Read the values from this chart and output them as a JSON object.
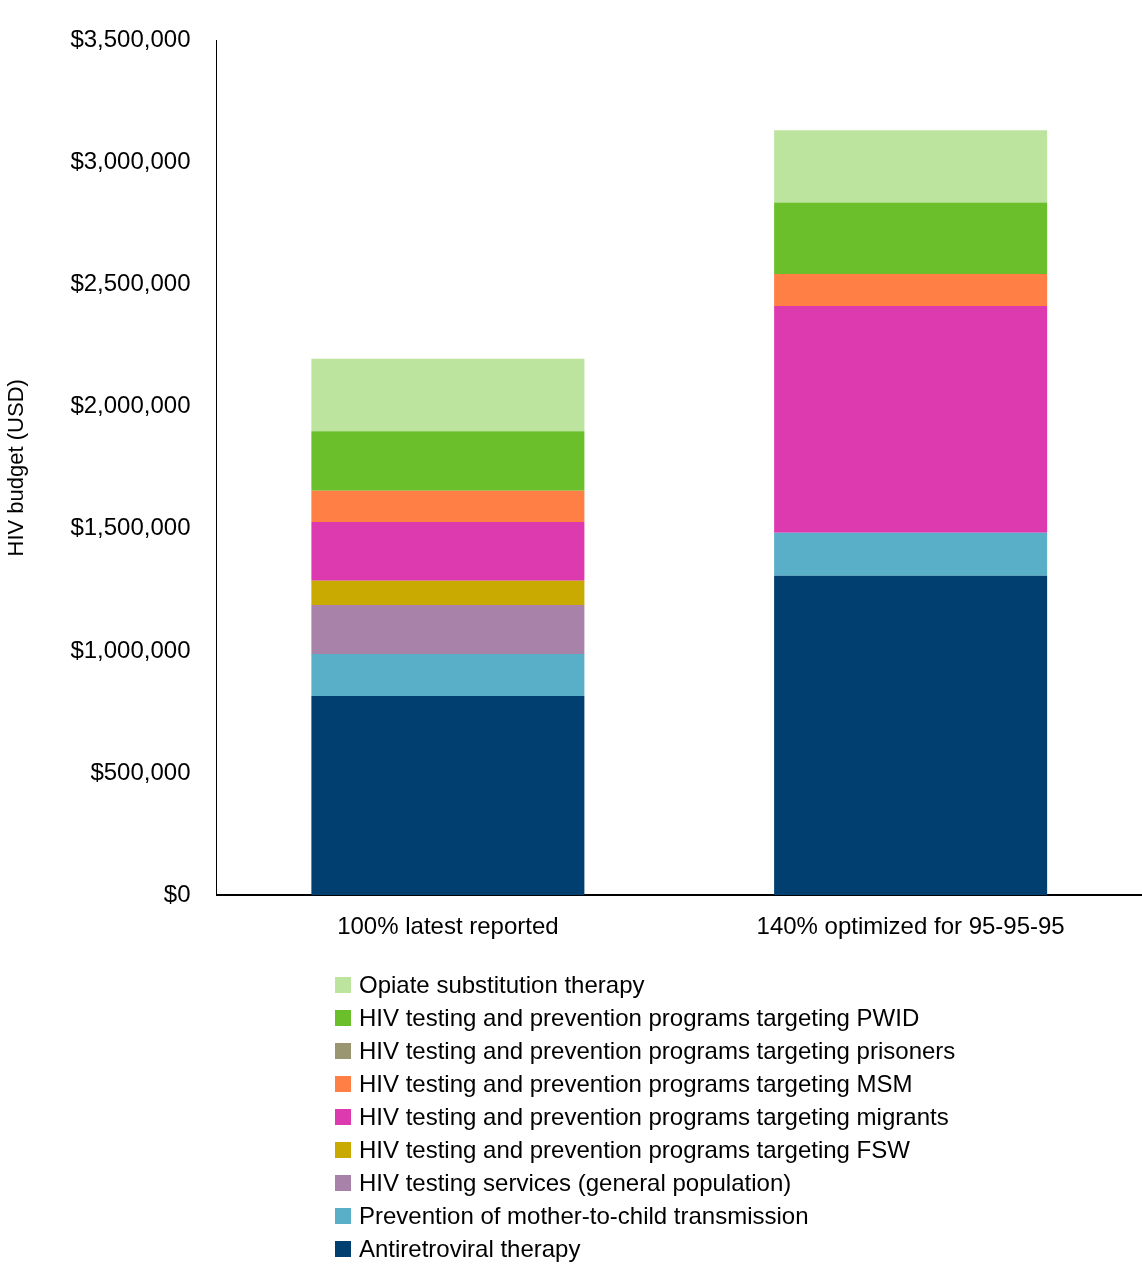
{
  "chart_data": {
    "type": "bar",
    "stacked": true,
    "ylabel": "HIV budget (USD)",
    "categories": [
      "100% latest reported",
      "140% optimized for 95-95-95"
    ],
    "series": [
      {
        "name": "Antiretroviral therapy",
        "color": "#003f70",
        "values": [
          816000,
          1308000
        ]
      },
      {
        "name": "Prevention of mother-to-child transmission",
        "color": "#5aafc8",
        "values": [
          172000,
          176000
        ]
      },
      {
        "name": "HIV testing services (general population)",
        "color": "#a882a8",
        "values": [
          200000,
          0
        ]
      },
      {
        "name": "HIV testing and prevention programs targeting FSW",
        "color": "#c8aa00",
        "values": [
          100000,
          0
        ]
      },
      {
        "name": "HIV testing and prevention programs targeting migrants",
        "color": "#dc3aae",
        "values": [
          240000,
          928000
        ]
      },
      {
        "name": "HIV testing and prevention programs targeting MSM",
        "color": "#ff7f45",
        "values": [
          128000,
          132000
        ]
      },
      {
        "name": "HIV testing and prevention programs targeting prisoners",
        "color": "#9a9672",
        "values": [
          0,
          0
        ]
      },
      {
        "name": "HIV testing and prevention programs targeting PWID",
        "color": "#6abf2a",
        "values": [
          244000,
          292000
        ]
      },
      {
        "name": "Opiate substitution therapy",
        "color": "#bde49e",
        "values": [
          296000,
          296000
        ]
      }
    ],
    "ylim": [
      0,
      3500000
    ],
    "yticks": [
      {
        "value": 0,
        "label": "$0"
      },
      {
        "value": 500000,
        "label": "$500,000"
      },
      {
        "value": 1000000,
        "label": "$1,000,000"
      },
      {
        "value": 1500000,
        "label": "$1,500,000"
      },
      {
        "value": 2000000,
        "label": "$2,000,000"
      },
      {
        "value": 2500000,
        "label": "$2,500,000"
      },
      {
        "value": 3000000,
        "label": "$3,000,000"
      },
      {
        "value": 3500000,
        "label": "$3,500,000"
      }
    ],
    "grid": false,
    "legend": "bottom"
  }
}
